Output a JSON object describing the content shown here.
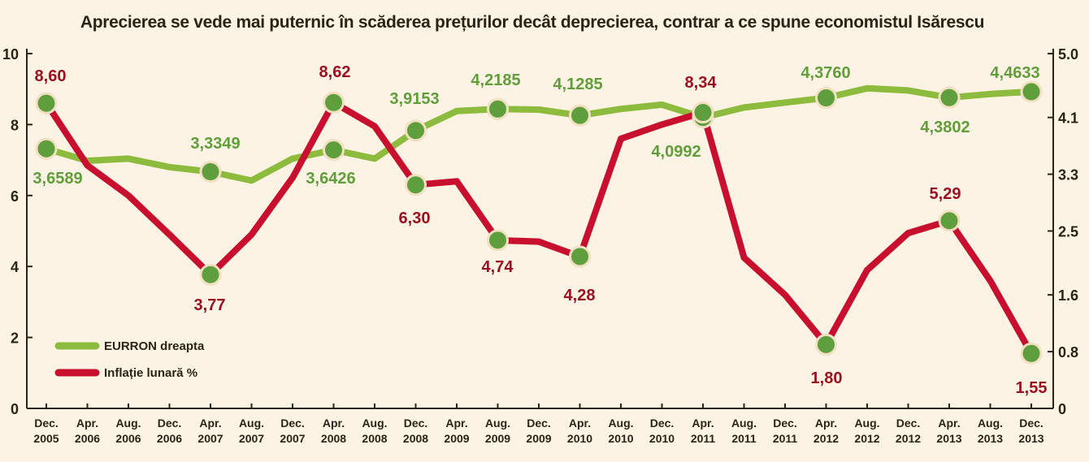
{
  "chart_data": {
    "type": "line",
    "title": "Aprecierea se vede mai puternic în scăderea prețurilor decât deprecierea, contrar a ce spune economistul Isărescu",
    "categories": [
      [
        "Dec.",
        "2005"
      ],
      [
        "Apr.",
        "2006"
      ],
      [
        "Aug.",
        "2006"
      ],
      [
        "Dec.",
        "2006"
      ],
      [
        "Apr.",
        "2007"
      ],
      [
        "Aug.",
        "2007"
      ],
      [
        "Dec.",
        "2007"
      ],
      [
        "Apr.",
        "2008"
      ],
      [
        "Aug.",
        "2008"
      ],
      [
        "Dec.",
        "2008"
      ],
      [
        "Apr.",
        "2009"
      ],
      [
        "Aug.",
        "2009"
      ],
      [
        "Dec.",
        "2009"
      ],
      [
        "Apr.",
        "2010"
      ],
      [
        "Aug.",
        "2010"
      ],
      [
        "Dec.",
        "2010"
      ],
      [
        "Apr.",
        "2011"
      ],
      [
        "Aug.",
        "2011"
      ],
      [
        "Dec.",
        "2011"
      ],
      [
        "Apr.",
        "2012"
      ],
      [
        "Aug.",
        "2012"
      ],
      [
        "Dec.",
        "2012"
      ],
      [
        "Apr.",
        "2013"
      ],
      [
        "Aug.",
        "2013"
      ],
      [
        "Dec.",
        "2013"
      ]
    ],
    "left_axis": {
      "ylim": [
        0,
        10
      ],
      "ticks": [
        "0",
        "2",
        "4",
        "6",
        "8",
        "10"
      ]
    },
    "right_axis": {
      "ylim": [
        0,
        5.0
      ],
      "ticks": [
        "0",
        "0.8",
        "1.6",
        "2.5",
        "3.3",
        "4.1",
        "5.0"
      ]
    },
    "grid": false,
    "legend_position": "bottom-left",
    "series": [
      {
        "name": "EURRON dreapta",
        "axis": "right",
        "color": "#8dbb3d",
        "values": [
          3.6589,
          3.49,
          3.52,
          3.4,
          3.3349,
          3.21,
          3.52,
          3.6426,
          3.52,
          3.9153,
          4.19,
          4.2185,
          4.21,
          4.1285,
          4.22,
          4.28,
          4.0992,
          4.24,
          4.31,
          4.376,
          4.51,
          4.48,
          4.3802,
          4.43,
          4.4633
        ],
        "markers": [
          0,
          4,
          7,
          9,
          11,
          13,
          16,
          19,
          22,
          24
        ],
        "labels": [
          "3,6589",
          "3,3349",
          "3,6426",
          "3,9153",
          "4,2185",
          "4,1285",
          "4,0992",
          "4,3760",
          "4,3802",
          "4,4633"
        ]
      },
      {
        "name": "Inflație lunară %",
        "axis": "left",
        "color": "#c8102e",
        "values": [
          8.6,
          6.85,
          6.0,
          4.9,
          3.77,
          4.9,
          6.5,
          8.62,
          7.95,
          6.3,
          6.4,
          4.74,
          4.7,
          4.28,
          7.6,
          8.0,
          8.34,
          4.25,
          3.2,
          1.8,
          3.9,
          4.94,
          5.29,
          3.6,
          1.55
        ],
        "markers": [
          0,
          4,
          7,
          9,
          11,
          13,
          16,
          19,
          22,
          24
        ],
        "labels": [
          "8,60",
          "3,77",
          "8,62",
          "6,30",
          "4,74",
          "4,28",
          "8,34",
          "1,80",
          "5,29",
          "1,55"
        ]
      }
    ]
  },
  "colors": {
    "background": "#fdf3e4",
    "marker_fill": "#5e9e3c",
    "marker_stroke": "#f3dfc2",
    "green_label": "#5f9e3a",
    "red_label": "#9b0f1e",
    "axis": "#2b2416"
  }
}
